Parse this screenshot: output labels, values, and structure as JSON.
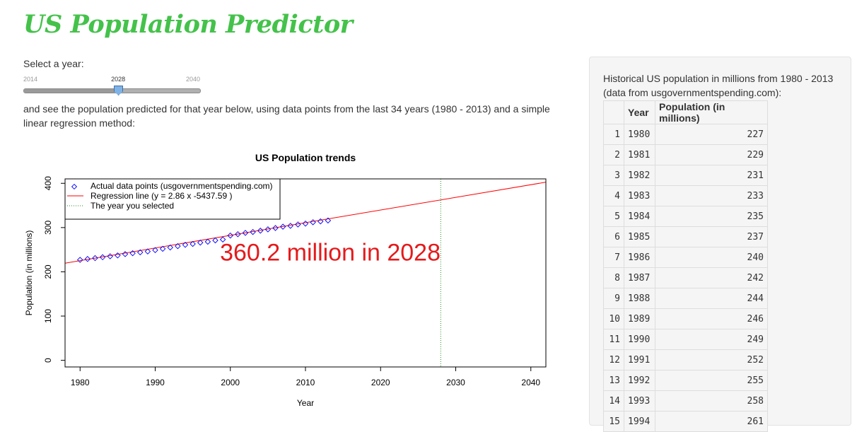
{
  "app_title": "US Population Predictor",
  "slider": {
    "label": "Select a year:",
    "min_label": "2014",
    "max_label": "2040",
    "min": 2014,
    "max": 2040,
    "value": 2028,
    "value_label": "2028"
  },
  "description": "and see the population predicted for that year below, using data points from the last 34 years (1980 - 2013) and a simple linear regression method:",
  "chart_data": {
    "type": "scatter",
    "title": "US Population trends",
    "xlabel": "Year",
    "ylabel": "Population (in millions)",
    "xlim": [
      1978,
      2042
    ],
    "ylim": [
      -15,
      410
    ],
    "x_ticks": [
      "1980",
      "1990",
      "2000",
      "2010",
      "2020",
      "2030",
      "2040"
    ],
    "y_ticks": [
      "0",
      "100",
      "200",
      "300",
      "400"
    ],
    "x": [
      1980,
      1981,
      1982,
      1983,
      1984,
      1985,
      1986,
      1987,
      1988,
      1989,
      1990,
      1991,
      1992,
      1993,
      1994,
      1995,
      1996,
      1997,
      1998,
      1999,
      2000,
      2001,
      2002,
      2003,
      2004,
      2005,
      2006,
      2007,
      2008,
      2009,
      2010,
      2011,
      2012,
      2013
    ],
    "y": [
      227,
      229,
      231,
      233,
      235,
      237,
      240,
      242,
      244,
      246,
      249,
      252,
      255,
      258,
      261,
      263,
      266,
      268,
      271,
      273,
      282,
      285,
      288,
      290,
      293,
      296,
      299,
      302,
      304,
      307,
      309,
      312,
      314,
      316
    ],
    "regression": {
      "slope": 2.86,
      "intercept": -5437.59
    },
    "selected_year": 2028,
    "annotation": "360.2 million in  2028",
    "annotation_color": "#e41a1c",
    "point_color": "#0000ff",
    "line_color": "#ff0000",
    "selected_line_color": "#228b22",
    "legend": {
      "position": "top-left",
      "entries": [
        "Actual data points (usgovernmentspending.com)",
        "Regression line (y = 2.86 x -5437.59 )",
        "The year you selected"
      ]
    }
  },
  "side_panel": {
    "caption": "Historical US population in millions from 1980 - 2013 (data from usgovernmentspending.com):",
    "columns": [
      "",
      "Year",
      "Population (in millions)"
    ],
    "rows": [
      {
        "idx": "1",
        "year": "1980",
        "pop": "227"
      },
      {
        "idx": "2",
        "year": "1981",
        "pop": "229"
      },
      {
        "idx": "3",
        "year": "1982",
        "pop": "231"
      },
      {
        "idx": "4",
        "year": "1983",
        "pop": "233"
      },
      {
        "idx": "5",
        "year": "1984",
        "pop": "235"
      },
      {
        "idx": "6",
        "year": "1985",
        "pop": "237"
      },
      {
        "idx": "7",
        "year": "1986",
        "pop": "240"
      },
      {
        "idx": "8",
        "year": "1987",
        "pop": "242"
      },
      {
        "idx": "9",
        "year": "1988",
        "pop": "244"
      },
      {
        "idx": "10",
        "year": "1989",
        "pop": "246"
      },
      {
        "idx": "11",
        "year": "1990",
        "pop": "249"
      },
      {
        "idx": "12",
        "year": "1991",
        "pop": "252"
      },
      {
        "idx": "13",
        "year": "1992",
        "pop": "255"
      },
      {
        "idx": "14",
        "year": "1993",
        "pop": "258"
      },
      {
        "idx": "15",
        "year": "1994",
        "pop": "261"
      }
    ]
  }
}
